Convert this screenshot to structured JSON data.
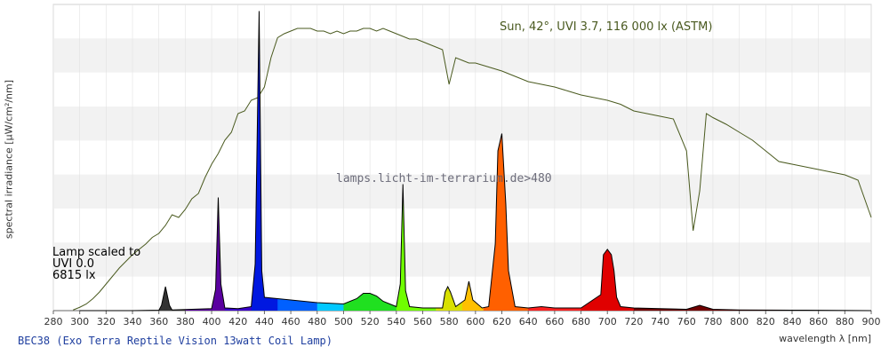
{
  "chart_data": {
    "type": "area",
    "title": "",
    "xlabel": "wavelength λ [nm]",
    "ylabel": "spectral irradiance [µW/cm²/nm]",
    "xlim": [
      280,
      900
    ],
    "x_ticks": [
      280,
      300,
      320,
      340,
      360,
      380,
      400,
      420,
      440,
      460,
      480,
      500,
      520,
      540,
      560,
      580,
      600,
      620,
      640,
      660,
      680,
      700,
      720,
      740,
      760,
      780,
      800,
      820,
      840,
      860,
      880,
      900
    ],
    "grid": true,
    "colors": {
      "sun_outline": "#4a5a1f",
      "lamp_outline": "#000000",
      "uv_grey": "#a8a8a8",
      "ir_grey": "#a8a8a8",
      "caption": "#1f3f9f"
    },
    "sun_label": "Sun, 42°, UVI 3.7, 116 000 lx (ASTM)",
    "watermark": "lamps.licht-im-terrarium.de>480",
    "lamp_note": [
      "Lamp scaled to",
      "UVI 0.0",
      "6815 lx"
    ],
    "caption": "BEC38 (Exo Terra Reptile Vision 13watt Coil Lamp)",
    "series": [
      {
        "name": "Sun, 42°, UVI 3.7, 116 000 lx (ASTM)",
        "x": [
          295,
          300,
          305,
          310,
          315,
          320,
          325,
          330,
          335,
          340,
          345,
          350,
          355,
          360,
          365,
          370,
          375,
          380,
          385,
          390,
          395,
          400,
          405,
          410,
          415,
          420,
          425,
          430,
          435,
          440,
          445,
          450,
          455,
          460,
          465,
          470,
          475,
          480,
          485,
          490,
          495,
          500,
          505,
          510,
          515,
          520,
          525,
          530,
          535,
          540,
          545,
          550,
          555,
          560,
          565,
          570,
          575,
          580,
          585,
          590,
          595,
          600,
          610,
          620,
          630,
          640,
          650,
          660,
          670,
          680,
          690,
          700,
          710,
          720,
          730,
          740,
          750,
          760,
          765,
          770,
          775,
          780,
          790,
          800,
          810,
          820,
          830,
          840,
          850,
          860,
          870,
          880,
          890,
          900
        ],
        "y": [
          0.5,
          2.5,
          5,
          9,
          14,
          20,
          26,
          32,
          37,
          42,
          46,
          50,
          55,
          58,
          64,
          72,
          70,
          76,
          84,
          88,
          100,
          110,
          118,
          128,
          134,
          148,
          150,
          158,
          160,
          168,
          190,
          205,
          208,
          210,
          212,
          212,
          212,
          210,
          210,
          208,
          210,
          208,
          210,
          210,
          212,
          212,
          210,
          212,
          210,
          208,
          206,
          204,
          204,
          202,
          200,
          198,
          196,
          170,
          190,
          188,
          186,
          186,
          183,
          180,
          176,
          172,
          170,
          168,
          165,
          162,
          160,
          158,
          155,
          150,
          148,
          146,
          144,
          120,
          60,
          90,
          148,
          145,
          140,
          134,
          128,
          120,
          112,
          110,
          108,
          106,
          104,
          102,
          98,
          70
        ]
      },
      {
        "name": "BEC38 (Exo Terra Reptile Vision 13watt Coil Lamp)",
        "x": [
          300,
          320,
          340,
          360,
          362,
          365,
          368,
          370,
          380,
          400,
          403,
          405,
          407,
          410,
          420,
          430,
          433,
          436,
          438,
          440,
          450,
          460,
          480,
          500,
          510,
          515,
          520,
          525,
          530,
          540,
          543,
          545,
          547,
          550,
          560,
          575,
          577,
          579,
          581,
          585,
          592,
          595,
          598,
          605,
          610,
          615,
          617,
          620,
          623,
          625,
          630,
          640,
          650,
          660,
          680,
          695,
          697,
          700,
          703,
          705,
          707,
          710,
          720,
          760,
          770,
          780,
          800,
          850,
          900
        ],
        "y": [
          0,
          0,
          0,
          0.3,
          4,
          18,
          4,
          0.5,
          0.8,
          1.5,
          16,
          85,
          20,
          2,
          1.5,
          3,
          35,
          225,
          30,
          10,
          9,
          8,
          6,
          5,
          9,
          13,
          13,
          11,
          7,
          3,
          20,
          95,
          15,
          3,
          2,
          2,
          14,
          18,
          14,
          3,
          8,
          22,
          8,
          2,
          3,
          50,
          120,
          133,
          80,
          30,
          3,
          2,
          3,
          2,
          2,
          12,
          42,
          46,
          42,
          30,
          10,
          3,
          2,
          1,
          4,
          1,
          0.5,
          0.3,
          0
        ]
      }
    ]
  }
}
